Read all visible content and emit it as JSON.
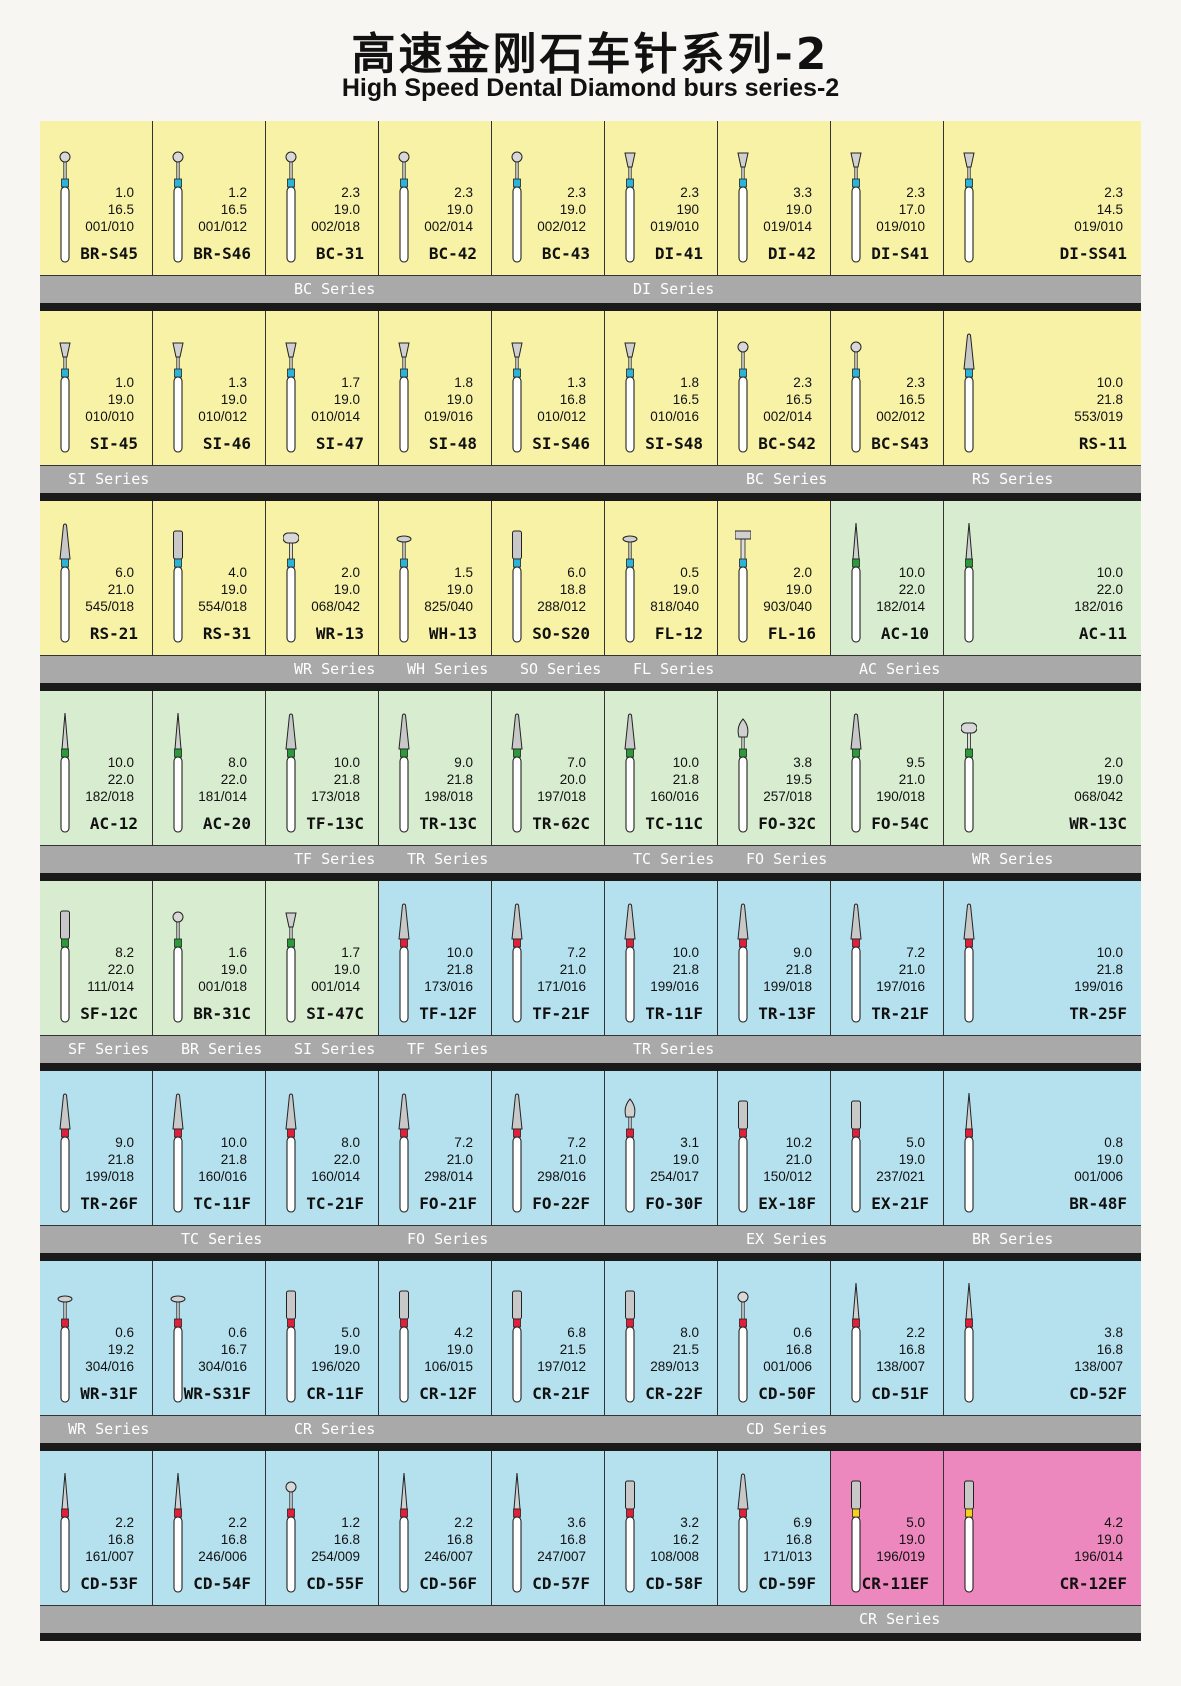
{
  "title_cn": "高速金刚石车针系列-2",
  "title_en": "High Speed Dental Diamond burs series-2",
  "colors": {
    "yellow": "#f8f2a6",
    "green": "#d8ecd0",
    "blue": "#b5e0ee",
    "pink": "#ec88bd",
    "band": "#a9a9a9"
  },
  "rows": [
    {
      "cells": [
        {
          "code": "BR-S45",
          "specs": [
            "1.0",
            "16.5",
            "001/010"
          ],
          "bg": "yellow",
          "head": "ball",
          "ring": "#2bb3d9"
        },
        {
          "code": "BR-S46",
          "specs": [
            "1.2",
            "16.5",
            "001/012"
          ],
          "bg": "yellow",
          "head": "ball",
          "ring": "#2bb3d9"
        },
        {
          "code": "BC-31",
          "specs": [
            "2.3",
            "19.0",
            "002/018"
          ],
          "bg": "yellow",
          "head": "ball",
          "ring": "#2bb3d9"
        },
        {
          "code": "BC-42",
          "specs": [
            "2.3",
            "19.0",
            "002/014"
          ],
          "bg": "yellow",
          "head": "ball",
          "ring": "#2bb3d9"
        },
        {
          "code": "BC-43",
          "specs": [
            "2.3",
            "19.0",
            "002/012"
          ],
          "bg": "yellow",
          "head": "ball",
          "ring": "#2bb3d9"
        },
        {
          "code": "DI-41",
          "specs": [
            "2.3",
            "190",
            "019/010"
          ],
          "bg": "yellow",
          "head": "cone-inv",
          "ring": "#2bb3d9"
        },
        {
          "code": "DI-42",
          "specs": [
            "3.3",
            "19.0",
            "019/014"
          ],
          "bg": "yellow",
          "head": "cone-inv",
          "ring": "#2bb3d9"
        },
        {
          "code": "DI-S41",
          "specs": [
            "2.3",
            "17.0",
            "019/010"
          ],
          "bg": "yellow",
          "head": "cone-inv",
          "ring": "#2bb3d9"
        },
        {
          "code": "DI-SS41",
          "specs": [
            "2.3",
            "14.5",
            "019/010"
          ],
          "bg": "yellow",
          "head": "cone-inv",
          "ring": "#2bb3d9"
        }
      ],
      "series": [
        {
          "label": "BC Series",
          "pos": "c2"
        },
        {
          "label": "DI Series",
          "pos": "c5"
        }
      ]
    },
    {
      "cells": [
        {
          "code": "SI-45",
          "specs": [
            "1.0",
            "19.0",
            "010/010"
          ],
          "bg": "yellow",
          "head": "cone-inv",
          "ring": "#2bb3d9"
        },
        {
          "code": "SI-46",
          "specs": [
            "1.3",
            "19.0",
            "010/012"
          ],
          "bg": "yellow",
          "head": "cone-inv",
          "ring": "#2bb3d9"
        },
        {
          "code": "SI-47",
          "specs": [
            "1.7",
            "19.0",
            "010/014"
          ],
          "bg": "yellow",
          "head": "cone-inv",
          "ring": "#2bb3d9"
        },
        {
          "code": "SI-48",
          "specs": [
            "1.8",
            "19.0",
            "019/016"
          ],
          "bg": "yellow",
          "head": "cone-inv",
          "ring": "#2bb3d9"
        },
        {
          "code": "SI-S46",
          "specs": [
            "1.3",
            "16.8",
            "010/012"
          ],
          "bg": "yellow",
          "head": "cone-inv",
          "ring": "#2bb3d9"
        },
        {
          "code": "SI-S48",
          "specs": [
            "1.8",
            "16.5",
            "010/016"
          ],
          "bg": "yellow",
          "head": "cone-inv",
          "ring": "#2bb3d9"
        },
        {
          "code": "BC-S42",
          "specs": [
            "2.3",
            "16.5",
            "002/014"
          ],
          "bg": "yellow",
          "head": "ball",
          "ring": "#2bb3d9"
        },
        {
          "code": "BC-S43",
          "specs": [
            "2.3",
            "16.5",
            "002/012"
          ],
          "bg": "yellow",
          "head": "ball",
          "ring": "#2bb3d9"
        },
        {
          "code": "RS-11",
          "specs": [
            "10.0",
            "21.8",
            "553/019"
          ],
          "bg": "yellow",
          "head": "long",
          "ring": "#2bb3d9"
        }
      ],
      "series": [
        {
          "label": "SI Series",
          "pos": "c0"
        },
        {
          "label": "BC Series",
          "pos": "c6"
        },
        {
          "label": "RS Series",
          "pos": "c8"
        }
      ]
    },
    {
      "cells": [
        {
          "code": "RS-21",
          "specs": [
            "6.0",
            "21.0",
            "545/018"
          ],
          "bg": "yellow",
          "head": "long",
          "ring": "#2bb3d9"
        },
        {
          "code": "RS-31",
          "specs": [
            "4.0",
            "19.0",
            "554/018"
          ],
          "bg": "yellow",
          "head": "cyl",
          "ring": "#2bb3d9"
        },
        {
          "code": "WR-13",
          "specs": [
            "2.0",
            "19.0",
            "068/042"
          ],
          "bg": "yellow",
          "head": "wheel",
          "ring": "#2bb3d9"
        },
        {
          "code": "WH-13",
          "specs": [
            "1.5",
            "19.0",
            "825/040"
          ],
          "bg": "yellow",
          "head": "disc",
          "ring": "#2bb3d9"
        },
        {
          "code": "SO-S20",
          "specs": [
            "6.0",
            "18.8",
            "288/012"
          ],
          "bg": "yellow",
          "head": "cyl",
          "ring": "#2bb3d9"
        },
        {
          "code": "FL-12",
          "specs": [
            "0.5",
            "19.0",
            "818/040"
          ],
          "bg": "yellow",
          "head": "disc",
          "ring": "#2bb3d9"
        },
        {
          "code": "FL-16",
          "specs": [
            "2.0",
            "19.0",
            "903/040"
          ],
          "bg": "yellow",
          "head": "tbar",
          "ring": "#2bb3d9"
        },
        {
          "code": "AC-10",
          "specs": [
            "10.0",
            "22.0",
            "182/014"
          ],
          "bg": "green",
          "head": "thin",
          "ring": "#2a9a3a"
        },
        {
          "code": "AC-11",
          "specs": [
            "10.0",
            "22.0",
            "182/016"
          ],
          "bg": "green",
          "head": "thin",
          "ring": "#2a9a3a"
        }
      ],
      "series": [
        {
          "label": "WR Series",
          "pos": "c2"
        },
        {
          "label": "WH Series",
          "pos": "c3"
        },
        {
          "label": "SO Series",
          "pos": "c4"
        },
        {
          "label": "FL Series",
          "pos": "c5"
        },
        {
          "label": "AC Series",
          "pos": "c7"
        }
      ]
    },
    {
      "cells": [
        {
          "code": "AC-12",
          "specs": [
            "10.0",
            "22.0",
            "182/018"
          ],
          "bg": "green",
          "head": "thin",
          "ring": "#2a9a3a"
        },
        {
          "code": "AC-20",
          "specs": [
            "8.0",
            "22.0",
            "181/014"
          ],
          "bg": "green",
          "head": "thin",
          "ring": "#2a9a3a"
        },
        {
          "code": "TF-13C",
          "specs": [
            "10.0",
            "21.8",
            "173/018"
          ],
          "bg": "green",
          "head": "long",
          "ring": "#2a9a3a"
        },
        {
          "code": "TR-13C",
          "specs": [
            "9.0",
            "21.8",
            "198/018"
          ],
          "bg": "green",
          "head": "long",
          "ring": "#2a9a3a"
        },
        {
          "code": "TR-62C",
          "specs": [
            "7.0",
            "20.0",
            "197/018"
          ],
          "bg": "green",
          "head": "long",
          "ring": "#2a9a3a"
        },
        {
          "code": "TC-11C",
          "specs": [
            "10.0",
            "21.8",
            "160/016"
          ],
          "bg": "green",
          "head": "long",
          "ring": "#2a9a3a"
        },
        {
          "code": "FO-32C",
          "specs": [
            "3.8",
            "19.5",
            "257/018"
          ],
          "bg": "green",
          "head": "flame",
          "ring": "#2a9a3a"
        },
        {
          "code": "FO-54C",
          "specs": [
            "9.5",
            "21.0",
            "190/018"
          ],
          "bg": "green",
          "head": "long",
          "ring": "#2a9a3a"
        },
        {
          "code": "WR-13C",
          "specs": [
            "2.0",
            "19.0",
            "068/042"
          ],
          "bg": "green",
          "head": "wheel",
          "ring": "#2a9a3a"
        }
      ],
      "series": [
        {
          "label": "TF Series",
          "pos": "c2"
        },
        {
          "label": "TR Series",
          "pos": "c3"
        },
        {
          "label": "TC Series",
          "pos": "c5"
        },
        {
          "label": "FO Series",
          "pos": "c6"
        },
        {
          "label": "WR Series",
          "pos": "c8"
        }
      ]
    },
    {
      "cells": [
        {
          "code": "SF-12C",
          "specs": [
            "8.2",
            "22.0",
            "111/014"
          ],
          "bg": "green",
          "head": "cyl",
          "ring": "#2a9a3a"
        },
        {
          "code": "BR-31C",
          "specs": [
            "1.6",
            "19.0",
            "001/018"
          ],
          "bg": "green",
          "head": "ball",
          "ring": "#2a9a3a"
        },
        {
          "code": "SI-47C",
          "specs": [
            "1.7",
            "19.0",
            "001/014"
          ],
          "bg": "green",
          "head": "cone-inv",
          "ring": "#2a9a3a"
        },
        {
          "code": "TF-12F",
          "specs": [
            "10.0",
            "21.8",
            "173/016"
          ],
          "bg": "blue",
          "head": "long",
          "ring": "#e0203a"
        },
        {
          "code": "TF-21F",
          "specs": [
            "7.2",
            "21.0",
            "171/016"
          ],
          "bg": "blue",
          "head": "long",
          "ring": "#e0203a"
        },
        {
          "code": "TR-11F",
          "specs": [
            "10.0",
            "21.8",
            "199/016"
          ],
          "bg": "blue",
          "head": "long",
          "ring": "#e0203a"
        },
        {
          "code": "TR-13F",
          "specs": [
            "9.0",
            "21.8",
            "199/018"
          ],
          "bg": "blue",
          "head": "long",
          "ring": "#e0203a"
        },
        {
          "code": "TR-21F",
          "specs": [
            "7.2",
            "21.0",
            "197/016"
          ],
          "bg": "blue",
          "head": "long",
          "ring": "#e0203a"
        },
        {
          "code": "TR-25F",
          "specs": [
            "10.0",
            "21.8",
            "199/016"
          ],
          "bg": "blue",
          "head": "long",
          "ring": "#e0203a"
        }
      ],
      "series": [
        {
          "label": "SF Series",
          "pos": "c0"
        },
        {
          "label": "BR Series",
          "pos": "c1"
        },
        {
          "label": "SI Series",
          "pos": "c2"
        },
        {
          "label": "TF Series",
          "pos": "c3"
        },
        {
          "label": "TR Series",
          "pos": "c5"
        }
      ]
    },
    {
      "cells": [
        {
          "code": "TR-26F",
          "specs": [
            "9.0",
            "21.8",
            "199/018"
          ],
          "bg": "blue",
          "head": "long",
          "ring": "#e0203a"
        },
        {
          "code": "TC-11F",
          "specs": [
            "10.0",
            "21.8",
            "160/016"
          ],
          "bg": "blue",
          "head": "long",
          "ring": "#e0203a"
        },
        {
          "code": "TC-21F",
          "specs": [
            "8.0",
            "22.0",
            "160/014"
          ],
          "bg": "blue",
          "head": "long",
          "ring": "#e0203a"
        },
        {
          "code": "FO-21F",
          "specs": [
            "7.2",
            "21.0",
            "298/014"
          ],
          "bg": "blue",
          "head": "long",
          "ring": "#e0203a"
        },
        {
          "code": "FO-22F",
          "specs": [
            "7.2",
            "21.0",
            "298/016"
          ],
          "bg": "blue",
          "head": "long",
          "ring": "#e0203a"
        },
        {
          "code": "FO-30F",
          "specs": [
            "3.1",
            "19.0",
            "254/017"
          ],
          "bg": "blue",
          "head": "flame",
          "ring": "#e0203a"
        },
        {
          "code": "EX-18F",
          "specs": [
            "10.2",
            "21.0",
            "150/012"
          ],
          "bg": "blue",
          "head": "cyl",
          "ring": "#e0203a"
        },
        {
          "code": "EX-21F",
          "specs": [
            "5.0",
            "19.0",
            "237/021"
          ],
          "bg": "blue",
          "head": "cyl",
          "ring": "#e0203a"
        },
        {
          "code": "BR-48F",
          "specs": [
            "0.8",
            "19.0",
            "001/006"
          ],
          "bg": "blue",
          "head": "thin",
          "ring": "#e0203a"
        }
      ],
      "series": [
        {
          "label": "TC Series",
          "pos": "c1"
        },
        {
          "label": "FO Series",
          "pos": "c3"
        },
        {
          "label": "EX Series",
          "pos": "c6"
        },
        {
          "label": "BR Series",
          "pos": "c8"
        }
      ]
    },
    {
      "cells": [
        {
          "code": "WR-31F",
          "specs": [
            "0.6",
            "19.2",
            "304/016"
          ],
          "bg": "blue",
          "head": "disc",
          "ring": "#e0203a"
        },
        {
          "code": "WR-S31F",
          "specs": [
            "0.6",
            "16.7",
            "304/016"
          ],
          "bg": "blue",
          "head": "disc",
          "ring": "#e0203a"
        },
        {
          "code": "CR-11F",
          "specs": [
            "5.0",
            "19.0",
            "196/020"
          ],
          "bg": "blue",
          "head": "cyl",
          "ring": "#e0203a"
        },
        {
          "code": "CR-12F",
          "specs": [
            "4.2",
            "19.0",
            "106/015"
          ],
          "bg": "blue",
          "head": "cyl",
          "ring": "#e0203a"
        },
        {
          "code": "CR-21F",
          "specs": [
            "6.8",
            "21.5",
            "197/012"
          ],
          "bg": "blue",
          "head": "cyl",
          "ring": "#e0203a"
        },
        {
          "code": "CR-22F",
          "specs": [
            "8.0",
            "21.5",
            "289/013"
          ],
          "bg": "blue",
          "head": "cyl",
          "ring": "#e0203a"
        },
        {
          "code": "CD-50F",
          "specs": [
            "0.6",
            "16.8",
            "001/006"
          ],
          "bg": "blue",
          "head": "ball",
          "ring": "#e0203a"
        },
        {
          "code": "CD-51F",
          "specs": [
            "2.2",
            "16.8",
            "138/007"
          ],
          "bg": "blue",
          "head": "thin",
          "ring": "#e0203a"
        },
        {
          "code": "CD-52F",
          "specs": [
            "3.8",
            "16.8",
            "138/007"
          ],
          "bg": "blue",
          "head": "thin",
          "ring": "#e0203a"
        }
      ],
      "series": [
        {
          "label": "WR Series",
          "pos": "c0"
        },
        {
          "label": "CR Series",
          "pos": "c2"
        },
        {
          "label": "CD Series",
          "pos": "c6"
        }
      ]
    },
    {
      "cells": [
        {
          "code": "CD-53F",
          "specs": [
            "2.2",
            "16.8",
            "161/007"
          ],
          "bg": "blue",
          "head": "thin",
          "ring": "#e0203a"
        },
        {
          "code": "CD-54F",
          "specs": [
            "2.2",
            "16.8",
            "246/006"
          ],
          "bg": "blue",
          "head": "thin",
          "ring": "#e0203a"
        },
        {
          "code": "CD-55F",
          "specs": [
            "1.2",
            "16.8",
            "254/009"
          ],
          "bg": "blue",
          "head": "ball",
          "ring": "#e0203a"
        },
        {
          "code": "CD-56F",
          "specs": [
            "2.2",
            "16.8",
            "246/007"
          ],
          "bg": "blue",
          "head": "thin",
          "ring": "#e0203a"
        },
        {
          "code": "CD-57F",
          "specs": [
            "3.6",
            "16.8",
            "247/007"
          ],
          "bg": "blue",
          "head": "thin",
          "ring": "#e0203a"
        },
        {
          "code": "CD-58F",
          "specs": [
            "3.2",
            "16.2",
            "108/008"
          ],
          "bg": "blue",
          "head": "cyl",
          "ring": "#e0203a"
        },
        {
          "code": "CD-59F",
          "specs": [
            "6.9",
            "16.8",
            "171/013"
          ],
          "bg": "blue",
          "head": "long",
          "ring": "#e0203a"
        },
        {
          "code": "CR-11EF",
          "specs": [
            "5.0",
            "19.0",
            "196/019"
          ],
          "bg": "pink",
          "head": "cyl",
          "ring": "#f2d31a"
        },
        {
          "code": "CR-12EF",
          "specs": [
            "4.2",
            "19.0",
            "196/014"
          ],
          "bg": "pink",
          "head": "cyl",
          "ring": "#f2d31a"
        }
      ],
      "series": [
        {
          "label": "CR Series",
          "pos": "c7"
        }
      ]
    }
  ]
}
